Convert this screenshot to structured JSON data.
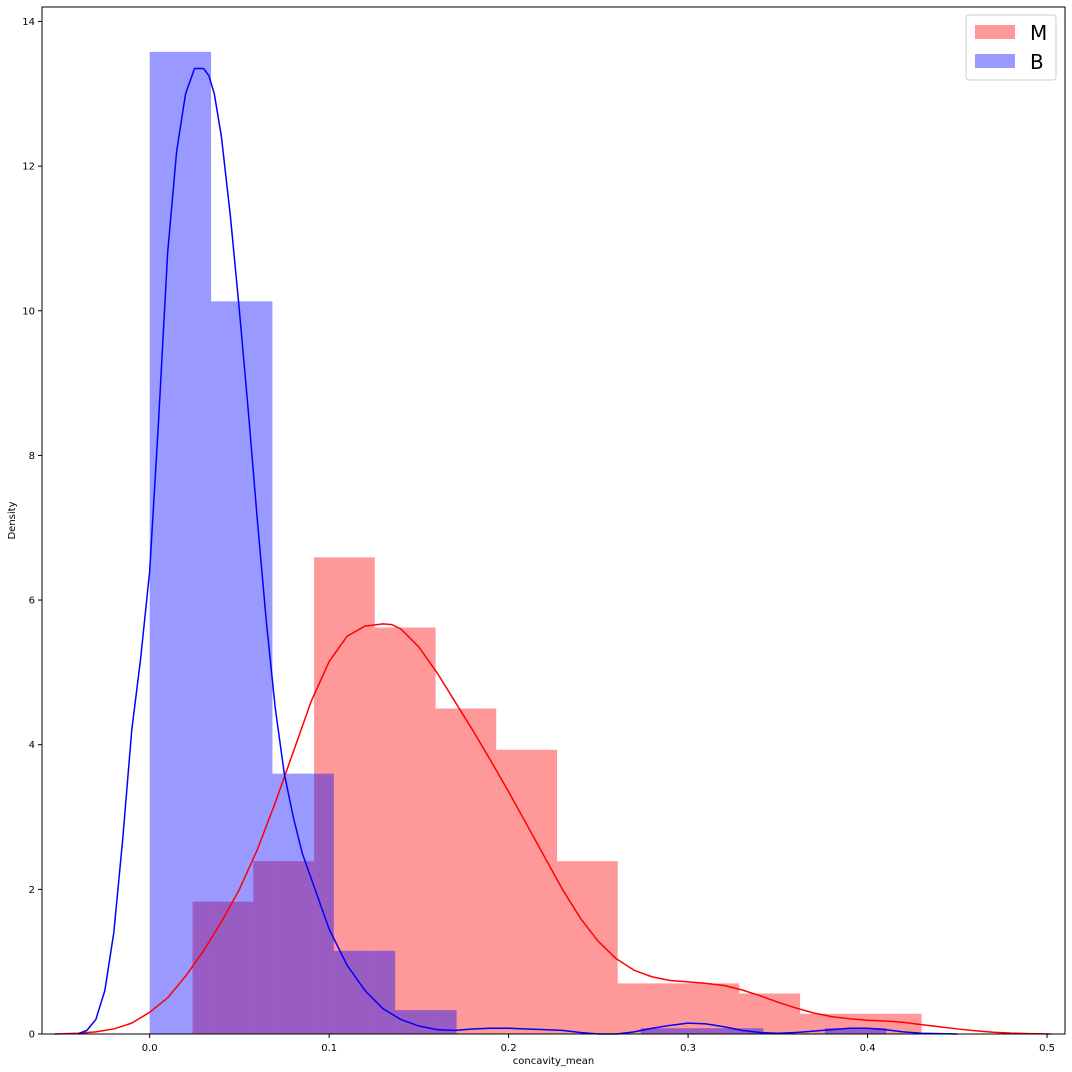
{
  "chart_data": {
    "type": "bar",
    "subtype": "histogram-with-kde",
    "xlabel": "concavity_mean",
    "ylabel": "Density",
    "xlim": [
      -0.06,
      0.51
    ],
    "ylim": [
      0,
      14.2
    ],
    "xticks": [
      0.0,
      0.1,
      0.2,
      0.3,
      0.4,
      0.5
    ],
    "xtick_labels": [
      "0.0",
      "0.1",
      "0.2",
      "0.3",
      "0.4",
      "0.5"
    ],
    "yticks": [
      0,
      2,
      4,
      6,
      8,
      10,
      12,
      14
    ],
    "ytick_labels": [
      "0",
      "2",
      "4",
      "6",
      "8",
      "10",
      "12",
      "14"
    ],
    "grid": false,
    "legend_position": "top-right",
    "series": [
      {
        "name": "M",
        "color": "#ff0000",
        "bar_alpha": 0.4,
        "bins": [
          {
            "x0": 0.0239,
            "x1": 0.0577,
            "density": 1.83
          },
          {
            "x0": 0.0577,
            "x1": 0.0916,
            "density": 2.39
          },
          {
            "x0": 0.0916,
            "x1": 0.1254,
            "density": 6.59
          },
          {
            "x0": 0.1254,
            "x1": 0.1593,
            "density": 5.62
          },
          {
            "x0": 0.1593,
            "x1": 0.1931,
            "density": 4.5
          },
          {
            "x0": 0.1931,
            "x1": 0.227,
            "density": 3.93
          },
          {
            "x0": 0.227,
            "x1": 0.2608,
            "density": 2.39
          },
          {
            "x0": 0.2608,
            "x1": 0.2947,
            "density": 0.7
          },
          {
            "x0": 0.2947,
            "x1": 0.3285,
            "density": 0.7
          },
          {
            "x0": 0.3285,
            "x1": 0.3624,
            "density": 0.56
          },
          {
            "x0": 0.3624,
            "x1": 0.3962,
            "density": 0.28
          },
          {
            "x0": 0.3962,
            "x1": 0.4301,
            "density": 0.28
          }
        ],
        "kde": {
          "x": [
            -0.053,
            -0.04,
            -0.03,
            -0.02,
            -0.01,
            0.0,
            0.01,
            0.02,
            0.03,
            0.04,
            0.05,
            0.06,
            0.07,
            0.08,
            0.09,
            0.1,
            0.11,
            0.12,
            0.13,
            0.135,
            0.14,
            0.15,
            0.16,
            0.17,
            0.18,
            0.19,
            0.2,
            0.21,
            0.22,
            0.23,
            0.24,
            0.25,
            0.26,
            0.27,
            0.28,
            0.29,
            0.3,
            0.31,
            0.32,
            0.33,
            0.34,
            0.35,
            0.36,
            0.37,
            0.38,
            0.39,
            0.4,
            0.41,
            0.42,
            0.43,
            0.44,
            0.45,
            0.46,
            0.47,
            0.48,
            0.49,
            0.502
          ],
          "y": [
            0.0,
            0.01,
            0.03,
            0.07,
            0.15,
            0.3,
            0.5,
            0.8,
            1.15,
            1.55,
            2.0,
            2.55,
            3.2,
            3.9,
            4.6,
            5.15,
            5.5,
            5.64,
            5.67,
            5.66,
            5.6,
            5.35,
            5.0,
            4.6,
            4.2,
            3.78,
            3.35,
            2.9,
            2.45,
            2.0,
            1.6,
            1.28,
            1.04,
            0.88,
            0.79,
            0.74,
            0.72,
            0.7,
            0.67,
            0.61,
            0.53,
            0.44,
            0.36,
            0.29,
            0.24,
            0.21,
            0.19,
            0.18,
            0.16,
            0.13,
            0.1,
            0.07,
            0.045,
            0.025,
            0.012,
            0.005,
            0.0
          ]
        }
      },
      {
        "name": "B",
        "color": "#0000ff",
        "bar_alpha": 0.4,
        "bins": [
          {
            "x0": 0.0,
            "x1": 0.0342,
            "density": 13.58
          },
          {
            "x0": 0.0342,
            "x1": 0.0684,
            "density": 10.13
          },
          {
            "x0": 0.0684,
            "x1": 0.1026,
            "density": 3.6
          },
          {
            "x0": 0.1026,
            "x1": 0.1368,
            "density": 1.15
          },
          {
            "x0": 0.1368,
            "x1": 0.171,
            "density": 0.33
          },
          {
            "x0": 0.171,
            "x1": 0.2052,
            "density": 0.0
          },
          {
            "x0": 0.2052,
            "x1": 0.2394,
            "density": 0.0
          },
          {
            "x0": 0.2394,
            "x1": 0.2736,
            "density": 0.0
          },
          {
            "x0": 0.2736,
            "x1": 0.3078,
            "density": 0.08
          },
          {
            "x0": 0.3078,
            "x1": 0.342,
            "density": 0.08
          },
          {
            "x0": 0.342,
            "x1": 0.3762,
            "density": 0.0
          },
          {
            "x0": 0.3762,
            "x1": 0.4104,
            "density": 0.08
          }
        ],
        "kde": {
          "x": [
            -0.04,
            -0.035,
            -0.03,
            -0.025,
            -0.02,
            -0.015,
            -0.01,
            -0.005,
            0.0,
            0.005,
            0.01,
            0.015,
            0.02,
            0.025,
            0.03,
            0.033,
            0.036,
            0.04,
            0.045,
            0.05,
            0.055,
            0.06,
            0.065,
            0.07,
            0.075,
            0.08,
            0.085,
            0.09,
            0.095,
            0.1,
            0.11,
            0.12,
            0.13,
            0.14,
            0.15,
            0.16,
            0.17,
            0.18,
            0.19,
            0.2,
            0.21,
            0.22,
            0.23,
            0.24,
            0.25,
            0.26,
            0.27,
            0.28,
            0.29,
            0.3,
            0.31,
            0.32,
            0.33,
            0.34,
            0.35,
            0.36,
            0.37,
            0.38,
            0.39,
            0.4,
            0.41,
            0.42,
            0.43,
            0.44,
            0.45
          ],
          "y": [
            0.0,
            0.05,
            0.2,
            0.6,
            1.4,
            2.7,
            4.2,
            5.2,
            6.4,
            8.5,
            10.8,
            12.2,
            13.0,
            13.35,
            13.35,
            13.25,
            13.0,
            12.4,
            11.3,
            10.0,
            8.6,
            7.1,
            5.7,
            4.5,
            3.6,
            3.0,
            2.5,
            2.15,
            1.8,
            1.45,
            0.95,
            0.6,
            0.35,
            0.2,
            0.11,
            0.06,
            0.05,
            0.07,
            0.08,
            0.08,
            0.07,
            0.06,
            0.05,
            0.02,
            0.0,
            0.0,
            0.03,
            0.08,
            0.12,
            0.15,
            0.14,
            0.1,
            0.05,
            0.02,
            0.01,
            0.02,
            0.04,
            0.06,
            0.08,
            0.08,
            0.06,
            0.03,
            0.01,
            0.005,
            0.0
          ]
        }
      }
    ]
  }
}
